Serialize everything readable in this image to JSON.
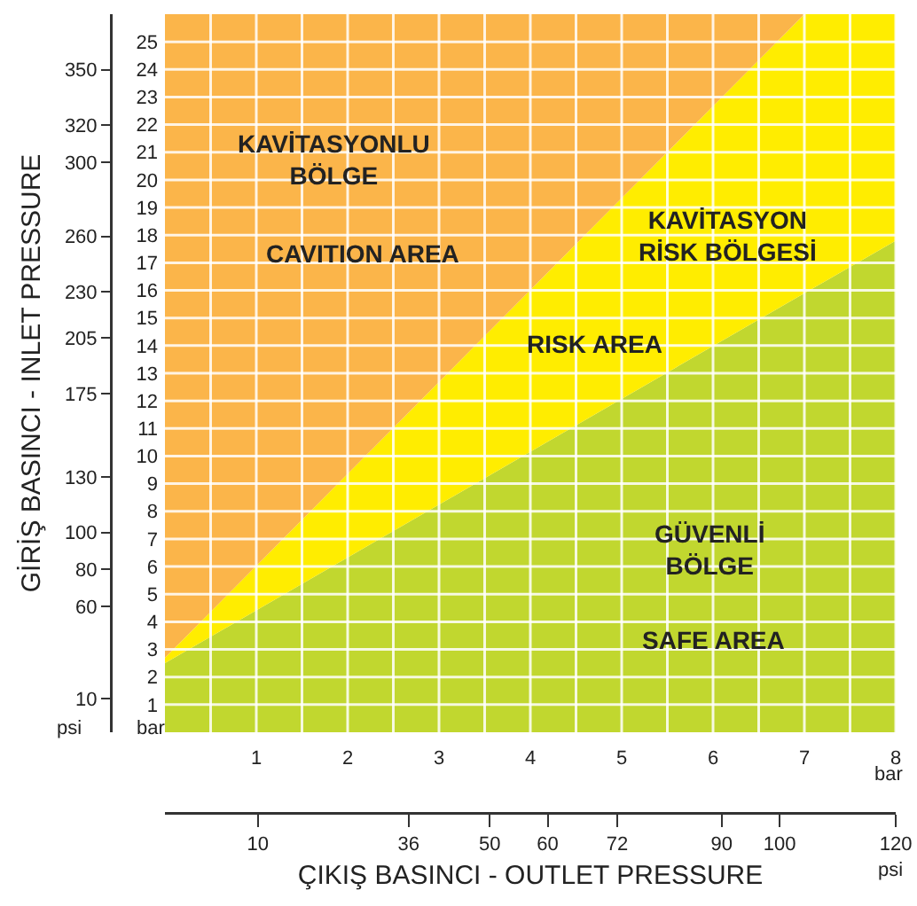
{
  "chart_data": {
    "type": "area",
    "stacked": true,
    "x": [
      0,
      7,
      8
    ],
    "series": [
      {
        "color": "#c1d72f",
        "values": [
          2.5,
          15.9,
          17.8
        ]
      },
      {
        "color": "#ffed00",
        "values": [
          0.2,
          10.1,
          8.2
        ]
      },
      {
        "color": "#fbb54a",
        "values": [
          23.3,
          0,
          0
        ]
      }
    ],
    "xlim": [
      0,
      8
    ],
    "xticks": [
      {
        "value": 0.5,
        "label": null
      },
      1,
      {
        "value": 1.5,
        "label": null
      },
      2,
      {
        "value": 2.5,
        "label": null
      },
      3,
      {
        "value": 3.5,
        "label": null
      },
      4,
      {
        "value": 4.5,
        "label": null
      },
      5,
      {
        "value": 5.5,
        "label": null
      },
      6,
      {
        "value": 6.5,
        "label": null
      },
      7,
      {
        "value": 7.5,
        "label": null
      },
      8
    ],
    "ylim": [
      0,
      26
    ],
    "yticks": [
      1,
      2,
      3,
      4,
      5,
      6,
      7,
      8,
      9,
      10,
      11,
      12,
      13,
      14,
      15,
      16,
      17,
      18,
      19,
      20,
      21,
      22,
      23,
      24,
      25
    ],
    "y2lim": [
      -8,
      380
    ],
    "y2ticks": [
      10,
      60,
      80,
      100,
      130,
      175,
      205,
      230,
      260,
      300,
      320,
      350
    ],
    "x2lim": [
      -6,
      120
    ],
    "x2ticks": [
      10,
      36,
      50,
      60,
      72,
      90,
      100,
      120
    ],
    "y2label": "GİRİŞ BASINCI - INLET PRESSURE",
    "x2label": "ÇIKIŞ BASINCI - OUTLET PRESSURE",
    "annotations": [
      "KAVİTASYONLU\nBÖLGE",
      "CAVITION AREA",
      "KAVİTASYON\nRİSK BÖLGESİ",
      "RISK AREA",
      "GÜVENLİ\nBÖLGE",
      "SAFE AREA",
      "psi",
      "bar",
      "bar",
      "psi"
    ],
    "grid": true,
    "marker": "none"
  }
}
